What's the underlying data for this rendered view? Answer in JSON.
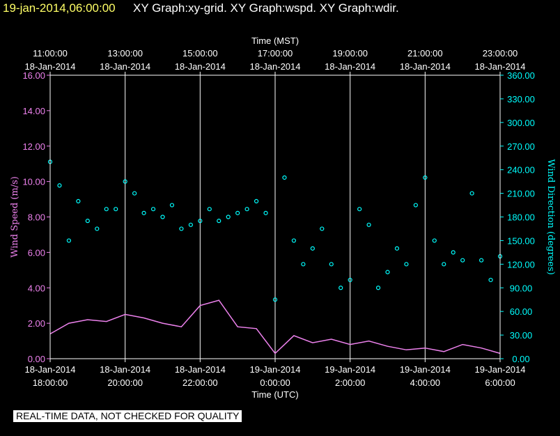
{
  "header": {
    "date_time": "19-jan-2014,06:00:00",
    "graphs_text": "XY Graph:xy-grid.  XY Graph:wspd.  XY Graph:wdir."
  },
  "notice": "REAL-TIME DATA, NOT CHECKED FOR QUALITY",
  "colors": {
    "background": "#000000",
    "grid": "#ffffff",
    "wind_speed": "#ee82ee",
    "wind_direction": "#00ffff",
    "header_date": "#ffff66"
  },
  "chart_data": {
    "type": "line",
    "top_axis_label": "Time (MST)",
    "bottom_axis_label": "Time (UTC)",
    "top_ticks": [
      {
        "time": "11:00:00",
        "date": "18-Jan-2014"
      },
      {
        "time": "13:00:00",
        "date": "18-Jan-2014"
      },
      {
        "time": "15:00:00",
        "date": "18-Jan-2014"
      },
      {
        "time": "17:00:00",
        "date": "18-Jan-2014"
      },
      {
        "time": "19:00:00",
        "date": "18-Jan-2014"
      },
      {
        "time": "21:00:00",
        "date": "18-Jan-2014"
      },
      {
        "time": "23:00:00",
        "date": "18-Jan-2014"
      }
    ],
    "bottom_ticks": [
      {
        "date": "18-Jan-2014",
        "time": "18:00:00"
      },
      {
        "date": "18-Jan-2014",
        "time": "20:00:00"
      },
      {
        "date": "18-Jan-2014",
        "time": "22:00:00"
      },
      {
        "date": "19-Jan-2014",
        "time": "0:00:00"
      },
      {
        "date": "19-Jan-2014",
        "time": "2:00:00"
      },
      {
        "date": "19-Jan-2014",
        "time": "4:00:00"
      },
      {
        "date": "19-Jan-2014",
        "time": "6:00:00"
      }
    ],
    "x_range_utc": [
      "18-Jan-2014 18:00",
      "19-Jan-2014 06:00"
    ],
    "left_axis": {
      "label": "Wind Speed (m/s)",
      "ylim": [
        0,
        16
      ],
      "ticks": [
        "0.00",
        "2.00",
        "4.00",
        "6.00",
        "8.00",
        "10.00",
        "12.00",
        "14.00",
        "16.00"
      ]
    },
    "right_axis": {
      "label": "Wind Direction (degrees)",
      "ylim": [
        0,
        360
      ],
      "ticks": [
        "0.00",
        "30.00",
        "60.00",
        "90.00",
        "120.00",
        "150.00",
        "180.00",
        "210.00",
        "240.00",
        "270.00",
        "300.00",
        "330.00",
        "360.00"
      ]
    },
    "grid": true,
    "series": [
      {
        "axis": "left",
        "style": "line",
        "hours_since_start": [
          0.0,
          0.5,
          1.0,
          1.5,
          2.0,
          2.5,
          3.0,
          3.5,
          4.0,
          4.5,
          5.0,
          5.5,
          6.0,
          6.5,
          7.0,
          7.5,
          8.0,
          8.5,
          9.0,
          9.5,
          10.0,
          10.5,
          11.0,
          11.5,
          12.0
        ],
        "values": [
          1.4,
          2.0,
          2.2,
          2.1,
          2.5,
          2.3,
          2.0,
          1.8,
          3.0,
          3.3,
          1.8,
          1.7,
          0.3,
          1.3,
          0.9,
          1.1,
          0.8,
          1.0,
          0.7,
          0.5,
          0.6,
          0.4,
          0.8,
          0.6,
          0.3
        ]
      },
      {
        "axis": "right",
        "style": "points",
        "hours_since_start": [
          0.0,
          0.25,
          0.5,
          0.75,
          1.0,
          1.25,
          1.5,
          1.75,
          2.0,
          2.25,
          2.5,
          2.75,
          3.0,
          3.25,
          3.5,
          3.75,
          4.0,
          4.25,
          4.5,
          4.75,
          5.0,
          5.25,
          5.5,
          5.75,
          6.0,
          6.25,
          6.5,
          6.75,
          7.0,
          7.25,
          7.5,
          7.75,
          8.0,
          8.25,
          8.5,
          8.75,
          9.0,
          9.25,
          9.5,
          9.75,
          10.0,
          10.25,
          10.5,
          10.75,
          11.0,
          11.25,
          11.5,
          11.75,
          12.0
        ],
        "values": [
          250,
          220,
          150,
          200,
          175,
          165,
          190,
          190,
          225,
          210,
          185,
          190,
          180,
          195,
          165,
          170,
          175,
          190,
          175,
          180,
          185,
          190,
          200,
          185,
          75,
          230,
          150,
          120,
          140,
          165,
          120,
          90,
          100,
          190,
          170,
          90,
          110,
          140,
          120,
          195,
          230,
          150,
          120,
          135,
          125,
          210,
          125,
          100,
          130
        ]
      }
    ]
  }
}
